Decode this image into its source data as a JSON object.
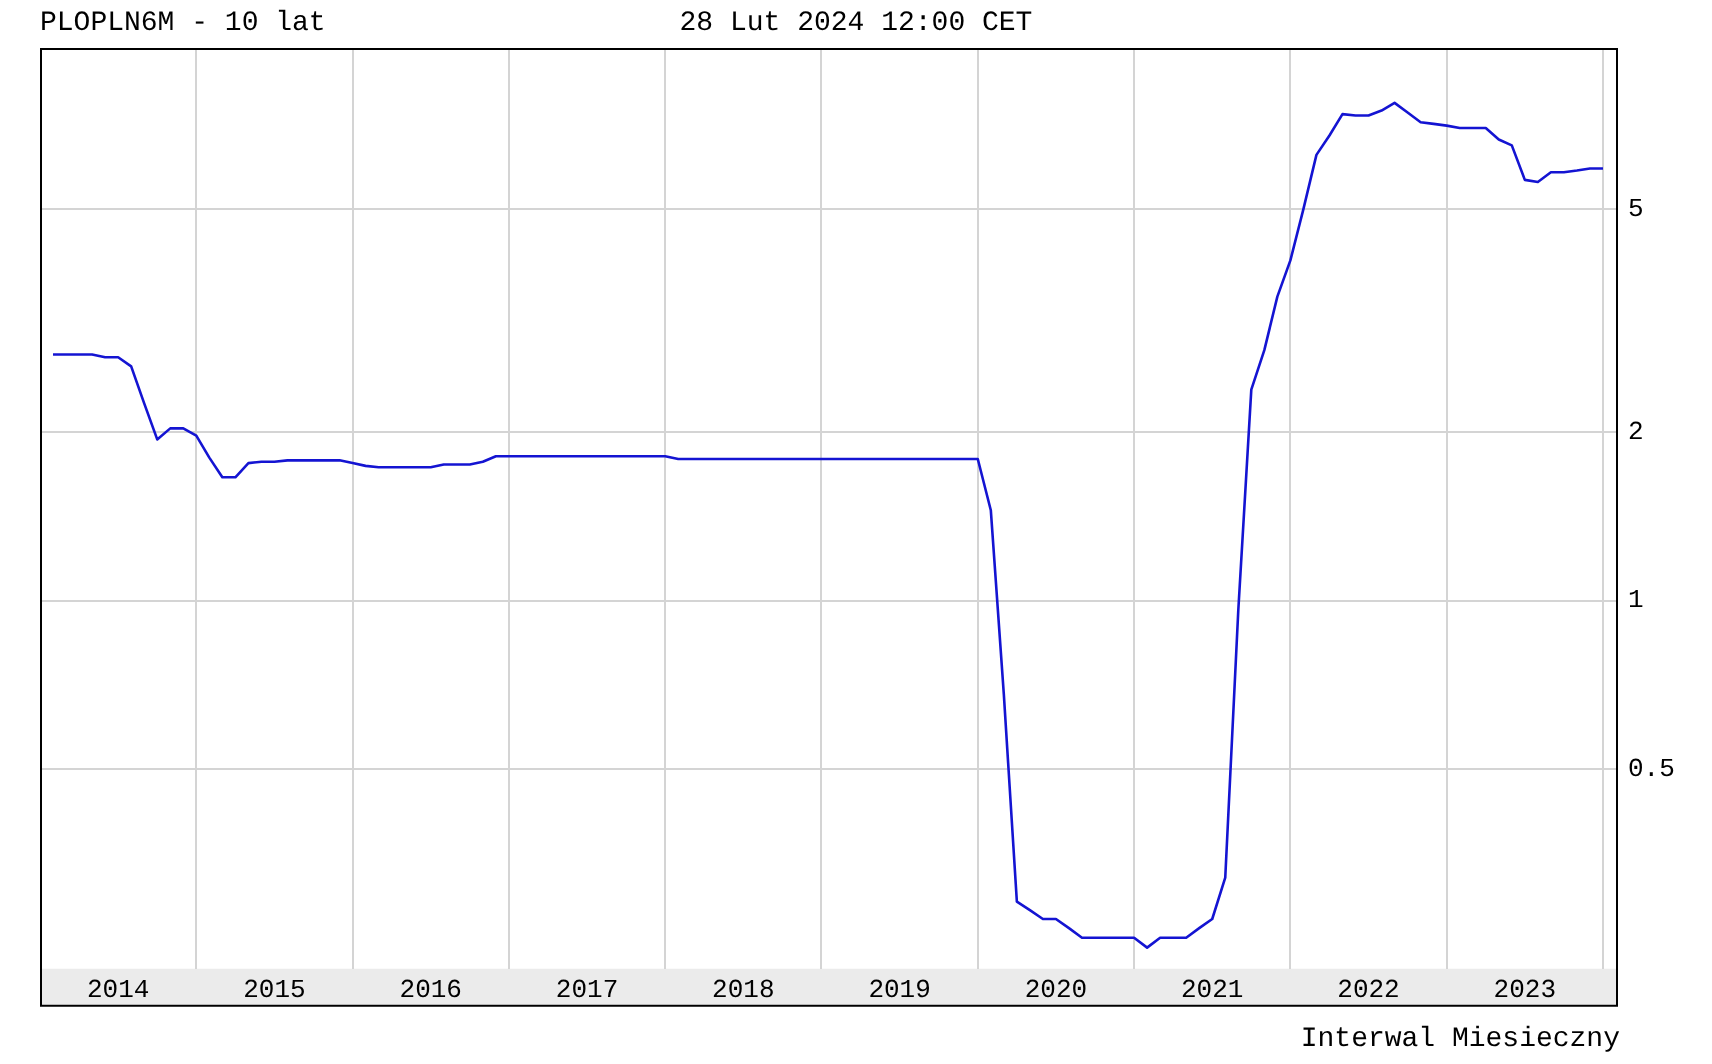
{
  "chart_data": {
    "type": "line",
    "title": "PLOPLN6M - 10 lat",
    "subtitle": "28 Lut 2024 12:00 CET",
    "annotations": [
      "Interwal Miesieczny"
    ],
    "x": [
      "2014-02",
      "2014-03",
      "2014-04",
      "2014-05",
      "2014-06",
      "2014-07",
      "2014-08",
      "2014-09",
      "2014-10",
      "2014-11",
      "2014-12",
      "2015-01",
      "2015-02",
      "2015-03",
      "2015-04",
      "2015-05",
      "2015-06",
      "2015-07",
      "2015-08",
      "2015-09",
      "2015-10",
      "2015-11",
      "2015-12",
      "2016-01",
      "2016-02",
      "2016-03",
      "2016-04",
      "2016-05",
      "2016-06",
      "2016-07",
      "2016-08",
      "2016-09",
      "2016-10",
      "2016-11",
      "2016-12",
      "2017-01",
      "2017-02",
      "2017-03",
      "2017-04",
      "2017-05",
      "2017-06",
      "2017-07",
      "2017-08",
      "2017-09",
      "2017-10",
      "2017-11",
      "2017-12",
      "2018-01",
      "2018-02",
      "2018-03",
      "2018-04",
      "2018-05",
      "2018-06",
      "2018-07",
      "2018-08",
      "2018-09",
      "2018-10",
      "2018-11",
      "2018-12",
      "2019-01",
      "2019-02",
      "2019-03",
      "2019-04",
      "2019-05",
      "2019-06",
      "2019-07",
      "2019-08",
      "2019-09",
      "2019-10",
      "2019-11",
      "2019-12",
      "2020-01",
      "2020-02",
      "2020-03",
      "2020-04",
      "2020-05",
      "2020-06",
      "2020-07",
      "2020-08",
      "2020-09",
      "2020-10",
      "2020-11",
      "2020-12",
      "2021-01",
      "2021-02",
      "2021-03",
      "2021-04",
      "2021-05",
      "2021-06",
      "2021-07",
      "2021-08",
      "2021-09",
      "2021-10",
      "2021-11",
      "2021-12",
      "2022-01",
      "2022-02",
      "2022-03",
      "2022-04",
      "2022-05",
      "2022-06",
      "2022-07",
      "2022-08",
      "2022-09",
      "2022-10",
      "2022-11",
      "2022-12",
      "2023-01",
      "2023-02",
      "2023-03",
      "2023-04",
      "2023-05",
      "2023-06",
      "2023-07",
      "2023-08",
      "2023-09",
      "2023-10",
      "2023-11",
      "2023-12",
      "2024-01"
    ],
    "series": [
      {
        "color": "#1414d2",
        "values": [
          2.75,
          2.75,
          2.75,
          2.75,
          2.72,
          2.72,
          2.62,
          2.25,
          1.94,
          2.03,
          2.03,
          1.97,
          1.8,
          1.66,
          1.66,
          1.76,
          1.77,
          1.77,
          1.78,
          1.78,
          1.78,
          1.78,
          1.78,
          1.76,
          1.74,
          1.73,
          1.73,
          1.73,
          1.73,
          1.73,
          1.75,
          1.75,
          1.75,
          1.77,
          1.81,
          1.81,
          1.81,
          1.81,
          1.81,
          1.81,
          1.81,
          1.81,
          1.81,
          1.81,
          1.81,
          1.81,
          1.81,
          1.81,
          1.79,
          1.79,
          1.79,
          1.79,
          1.79,
          1.79,
          1.79,
          1.79,
          1.79,
          1.79,
          1.79,
          1.79,
          1.79,
          1.79,
          1.79,
          1.79,
          1.79,
          1.79,
          1.79,
          1.79,
          1.79,
          1.79,
          1.79,
          1.79,
          1.45,
          0.68,
          0.29,
          0.28,
          0.27,
          0.27,
          0.26,
          0.25,
          0.25,
          0.25,
          0.25,
          0.25,
          0.24,
          0.25,
          0.25,
          0.25,
          0.26,
          0.27,
          0.32,
          0.96,
          2.38,
          2.8,
          3.49,
          4.05,
          5.0,
          6.25,
          6.77,
          7.39,
          7.35,
          7.35,
          7.5,
          7.74,
          7.44,
          7.15,
          7.1,
          7.05,
          6.98,
          6.98,
          6.98,
          6.66,
          6.5,
          5.64,
          5.59,
          5.82,
          5.82,
          5.86,
          5.91,
          5.91
        ]
      }
    ],
    "xlim": [
      "2014-01",
      "2024-02"
    ],
    "xticks": [
      {
        "value": "2014-07",
        "label": "2014"
      },
      {
        "value": "2015",
        "label": null
      },
      {
        "value": "2015-07",
        "label": "2015"
      },
      {
        "value": "2016",
        "label": null
      },
      {
        "value": "2016-07",
        "label": "2016"
      },
      {
        "value": "2017",
        "label": null
      },
      {
        "value": "2017-07",
        "label": "2017"
      },
      {
        "value": "2018",
        "label": null
      },
      {
        "value": "2018-07",
        "label": "2018"
      },
      {
        "value": "2019",
        "label": null
      },
      {
        "value": "2019-07",
        "label": "2019"
      },
      {
        "value": "2020",
        "label": null
      },
      {
        "value": "2020-07",
        "label": "2020"
      },
      {
        "value": "2021",
        "label": null
      },
      {
        "value": "2021-07",
        "label": "2021"
      },
      {
        "value": "2022",
        "label": null
      },
      {
        "value": "2022-07",
        "label": "2022"
      },
      {
        "value": "2023",
        "label": null
      },
      {
        "value": "2023-07",
        "label": "2023"
      },
      {
        "value": "2024",
        "label": null
      }
    ],
    "ylim": [
      0.22,
      9.7
    ],
    "yticks": [
      0.5,
      1,
      2,
      5
    ],
    "log": "y",
    "grid": true,
    "legend": false,
    "marker": "none",
    "line_style": "solid"
  }
}
